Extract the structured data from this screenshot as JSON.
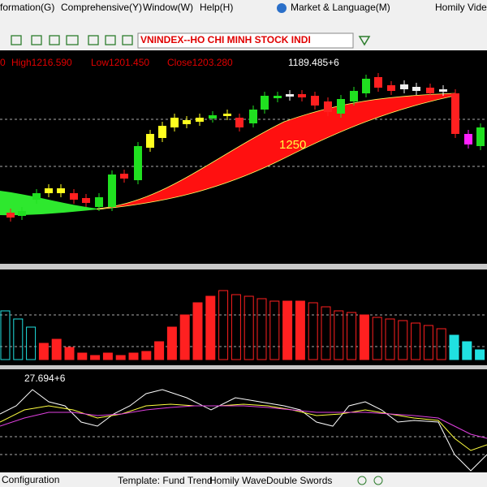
{
  "menu": {
    "items": [
      "formation(G)",
      "Comprehensive(Y)",
      "Window(W)",
      "Help(H)",
      "Market & Language(M)",
      "Homily Video"
    ]
  },
  "toolbar": {
    "symbol": "VNINDEX--HO CHI MINH STOCK INDI"
  },
  "main_panel": {
    "header": [
      "0",
      "High1216.590",
      "Low1201.450",
      "Close1203.280"
    ],
    "value_label": "1189.485+6",
    "ribbon_label": "1250"
  },
  "oscillator_panel": {
    "value_label": "27.694+6"
  },
  "status_bar": {
    "items": [
      "Configuration",
      "Template: Fund Trend",
      "Homily Wave",
      "Double Swords"
    ]
  }
}
